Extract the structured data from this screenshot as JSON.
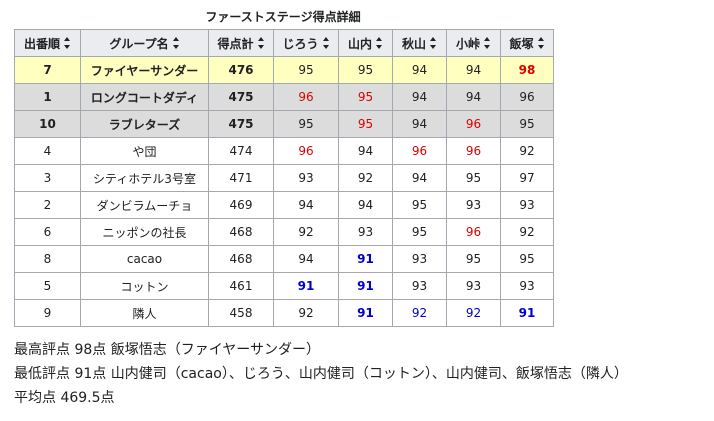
{
  "caption": "ファーストステージ得点詳細",
  "headers": [
    "出番順",
    "グループ名",
    "得点計",
    "じろう",
    "山内",
    "秋山",
    "小峠",
    "飯塚"
  ],
  "colors": {
    "highest": "#dd0000",
    "lowest": "#0000cc",
    "winner_bg": "#ffffbf",
    "finalist_bg": "#dcdcdc",
    "header_bg": "#eaecf0"
  },
  "rows": [
    {
      "order": "7",
      "group": "ファイヤーサンダー",
      "total": "476",
      "scores": [
        "95",
        "95",
        "94",
        "94",
        "98"
      ],
      "style": "winner",
      "marks": [
        "",
        "",
        "",
        "",
        "max-bold"
      ]
    },
    {
      "order": "1",
      "group": "ロングコートダディ",
      "total": "475",
      "scores": [
        "96",
        "95",
        "94",
        "94",
        "96"
      ],
      "style": "finalist",
      "marks": [
        "max",
        "max",
        "",
        "",
        ""
      ]
    },
    {
      "order": "10",
      "group": "ラブレターズ",
      "total": "475",
      "scores": [
        "95",
        "95",
        "94",
        "96",
        "95"
      ],
      "style": "finalist",
      "marks": [
        "",
        "max",
        "",
        "max",
        ""
      ]
    },
    {
      "order": "4",
      "group": "や団",
      "total": "474",
      "scores": [
        "96",
        "94",
        "96",
        "96",
        "92"
      ],
      "style": "",
      "marks": [
        "max",
        "",
        "max",
        "max",
        ""
      ]
    },
    {
      "order": "3",
      "group": "シティホテル3号室",
      "total": "471",
      "scores": [
        "93",
        "92",
        "94",
        "95",
        "97"
      ],
      "style": "",
      "marks": [
        "",
        "",
        "",
        "",
        ""
      ]
    },
    {
      "order": "2",
      "group": "ダンビラムーチョ",
      "total": "469",
      "scores": [
        "94",
        "94",
        "95",
        "93",
        "93"
      ],
      "style": "",
      "marks": [
        "",
        "",
        "",
        "",
        ""
      ]
    },
    {
      "order": "6",
      "group": "ニッポンの社長",
      "total": "468",
      "scores": [
        "92",
        "93",
        "95",
        "96",
        "92"
      ],
      "style": "",
      "marks": [
        "",
        "",
        "",
        "max",
        ""
      ]
    },
    {
      "order": "8",
      "group": "cacao",
      "total": "468",
      "scores": [
        "94",
        "91",
        "93",
        "95",
        "95"
      ],
      "style": "",
      "marks": [
        "",
        "min-bold",
        "",
        "",
        ""
      ]
    },
    {
      "order": "5",
      "group": "コットン",
      "total": "461",
      "scores": [
        "91",
        "91",
        "93",
        "93",
        "93"
      ],
      "style": "",
      "marks": [
        "min-bold",
        "min-bold",
        "",
        "",
        ""
      ]
    },
    {
      "order": "9",
      "group": "隣人",
      "total": "458",
      "scores": [
        "92",
        "91",
        "92",
        "92",
        "91"
      ],
      "style": "",
      "marks": [
        "",
        "min-bold",
        "min",
        "min",
        "min-bold"
      ]
    }
  ],
  "summary": {
    "highest": "最高評点 98点 飯塚悟志（ファイヤーサンダー）",
    "lowest": "最低評点 91点 山内健司（cacao）、じろう、山内健司（コットン）、山内健司、飯塚悟志（隣人）",
    "average": "平均点 469.5点"
  }
}
